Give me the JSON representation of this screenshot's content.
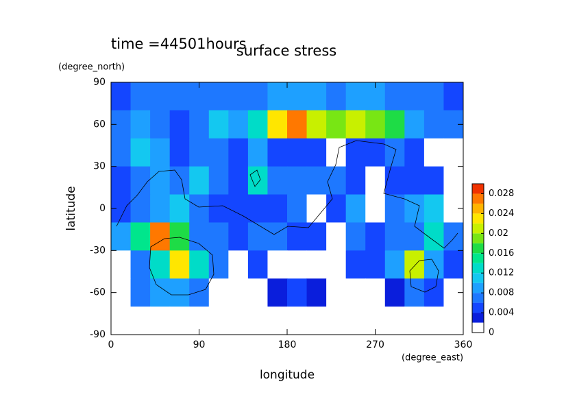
{
  "chart_data": {
    "type": "contour",
    "title": "surface stress",
    "subtitle": "time =44501hours",
    "x_label": "longitude",
    "x_unit": "(degree_east)",
    "y_label": "latitude",
    "y_unit": "(degree_north)",
    "xlim": [
      0,
      360
    ],
    "ylim": [
      -90,
      90
    ],
    "xticks": [
      0,
      90,
      180,
      270,
      360
    ],
    "yticks": [
      90,
      60,
      30,
      0,
      -30,
      -60,
      -90
    ],
    "x": [
      10,
      30,
      50,
      70,
      90,
      110,
      130,
      150,
      170,
      190,
      210,
      230,
      250,
      270,
      290,
      310,
      330,
      350
    ],
    "y": [
      80,
      60,
      40,
      20,
      0,
      -20,
      -40,
      -60,
      -80
    ],
    "z": [
      [
        0.005,
        0.006,
        0.007,
        0.006,
        0.007,
        0.006,
        0.006,
        0.007,
        0.008,
        0.008,
        0.008,
        0.007,
        0.009,
        0.008,
        0.007,
        0.006,
        0.006,
        0.005
      ],
      [
        0.006,
        0.008,
        0.006,
        0.004,
        0.006,
        0.01,
        0.008,
        0.012,
        0.022,
        0.026,
        0.02,
        0.018,
        0.02,
        0.018,
        0.016,
        0.008,
        0.006,
        0.006
      ],
      [
        0.006,
        0.01,
        0.008,
        0.004,
        0.006,
        0.006,
        0.004,
        0.008,
        0.004,
        0.004,
        0.004,
        0.001,
        0.004,
        0.004,
        0.006,
        0.004,
        0.001,
        0.001
      ],
      [
        0.004,
        0.006,
        0.008,
        0.006,
        0.01,
        0.006,
        0.004,
        0.012,
        0.006,
        0.006,
        0.006,
        0.006,
        0.004,
        0.001,
        0.004,
        0.004,
        0.004,
        0.001
      ],
      [
        0.004,
        0.006,
        0.008,
        0.01,
        0.006,
        0.004,
        0.004,
        0.004,
        0.004,
        0.006,
        0.001,
        0.004,
        0.008,
        0.001,
        0.006,
        0.008,
        0.01,
        0.001
      ],
      [
        0.008,
        0.014,
        0.026,
        0.016,
        0.006,
        0.006,
        0.004,
        0.006,
        0.006,
        0.004,
        0.004,
        0.001,
        0.006,
        0.004,
        0.006,
        0.006,
        0.012,
        0.006
      ],
      [
        0.001,
        0.006,
        0.012,
        0.022,
        0.012,
        0.006,
        0.001,
        0.004,
        0.001,
        0.001,
        0.001,
        0.001,
        0.004,
        0.004,
        0.008,
        0.02,
        0.008,
        0.004
      ],
      [
        0,
        0.006,
        0.008,
        0.008,
        0.006,
        0.001,
        0,
        0,
        0.003,
        0.004,
        0.003,
        0,
        0,
        0,
        0.003,
        0.006,
        0.004,
        0
      ],
      [
        0,
        0,
        0,
        0,
        0,
        0,
        0,
        0,
        0,
        0,
        0,
        0,
        0,
        0,
        0,
        0,
        0,
        0
      ]
    ],
    "clim": [
      0,
      0.03
    ],
    "clevels": [
      0,
      0.002,
      0.004,
      0.006,
      0.008,
      0.01,
      0.012,
      0.014,
      0.016,
      0.018,
      0.02,
      0.022,
      0.024,
      0.026,
      0.028,
      0.03
    ],
    "colors": [
      "#ffffff",
      "#0a1edc",
      "#1446ff",
      "#1e78ff",
      "#1ea0ff",
      "#14c8f0",
      "#00dcc8",
      "#00e68c",
      "#1edc46",
      "#78e614",
      "#c8f000",
      "#ffe600",
      "#ffb400",
      "#ff7800",
      "#f03200"
    ],
    "cticks": [
      0,
      0.004,
      0.008,
      0.012,
      0.016,
      0.02,
      0.024,
      0.028
    ]
  }
}
